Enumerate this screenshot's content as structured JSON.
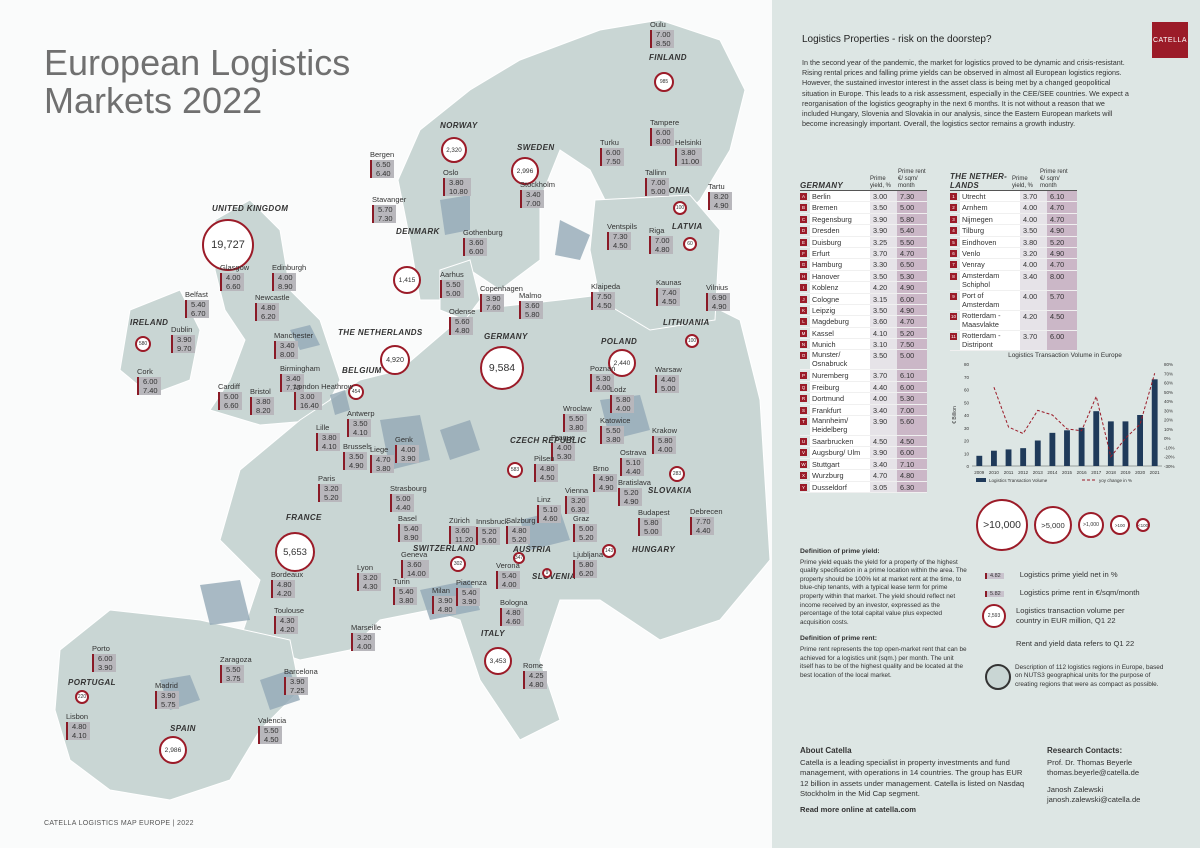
{
  "title": {
    "line1": "European Logistics",
    "line2": "Markets 2022"
  },
  "footer": "CATELLA LOGISTICS MAP EUROPE | 2022",
  "logo": "CATELLA",
  "colors": {
    "accent": "#9b1b28",
    "land": "#c9d6d4",
    "panel": "#dde6e4"
  },
  "panel": {
    "heading": "Logistics Properties - risk on the doorstep?",
    "intro": "In the second year of the pandemic, the market for logistics proved to be dynamic and crisis-resistant. Rising rental prices and falling prime yields can be observed in almost all European logistics regions. However, the sustained investor interest in the asset class is being met by a changed geopolitical situation in Europe. This leads to a risk assessment, especially in the CEE/SEE countries. We expect a reorganisation of the logistics geography in the next 6 months. It is not without a reason that we included Hungary, Slovenia and Slovakia in our analysis, since the Eastern European markets will become increasingly important. Overall, the logistics sector remains a growth industry."
  },
  "countries": [
    {
      "name": "UNITED KINGDOM",
      "volume": "19,727"
    },
    {
      "name": "NORWAY",
      "volume": "2,320"
    },
    {
      "name": "SWEDEN",
      "volume": "2,996"
    },
    {
      "name": "FINLAND",
      "volume": "985"
    },
    {
      "name": "ESTONIA",
      "volume": "100"
    },
    {
      "name": "LATVIA",
      "volume": "60"
    },
    {
      "name": "LITHUANIA",
      "volume": "100"
    },
    {
      "name": "DENMARK",
      "volume": "1,415"
    },
    {
      "name": "IRELAND",
      "volume": "580"
    },
    {
      "name": "THE NETHERLANDS",
      "volume": "4,920"
    },
    {
      "name": "BELGIUM",
      "volume": "454"
    },
    {
      "name": "GERMANY",
      "volume": "9,584"
    },
    {
      "name": "POLAND",
      "volume": "2,440"
    },
    {
      "name": "CZECH REPUBLIC",
      "volume": "583"
    },
    {
      "name": "SLOVAKIA",
      "volume": "283"
    },
    {
      "name": "FRANCE",
      "volume": "5,653"
    },
    {
      "name": "SWITZERLAND",
      "volume": "302"
    },
    {
      "name": "AUSTRIA",
      "volume": "347"
    },
    {
      "name": "SLOVENIA",
      "volume": "9"
    },
    {
      "name": "HUNGARY",
      "volume": "143"
    },
    {
      "name": "ITALY",
      "volume": "3,453"
    },
    {
      "name": "PORTUGAL",
      "volume": "220"
    },
    {
      "name": "SPAIN",
      "volume": "2,986"
    }
  ],
  "cities": [
    {
      "name": "Oulu",
      "yield": "7.00",
      "rent": "8.50"
    },
    {
      "name": "Tampere",
      "yield": "6.00",
      "rent": "8.00"
    },
    {
      "name": "Turku",
      "yield": "6.00",
      "rent": "7.50"
    },
    {
      "name": "Helsinki",
      "yield": "3.80",
      "rent": "11.00"
    },
    {
      "name": "Tallinn",
      "yield": "7.00",
      "rent": "5.00"
    },
    {
      "name": "Tartu",
      "yield": "8.20",
      "rent": "4.90"
    },
    {
      "name": "Bergen",
      "yield": "6.50",
      "rent": "6.40"
    },
    {
      "name": "Oslo",
      "yield": "3.80",
      "rent": "10.80"
    },
    {
      "name": "Stavanger",
      "yield": "5.70",
      "rent": "7.30"
    },
    {
      "name": "Stockholm",
      "yield": "3.40",
      "rent": "7.00"
    },
    {
      "name": "Gothenburg",
      "yield": "3.60",
      "rent": "6.00"
    },
    {
      "name": "Ventspils",
      "yield": "7.30",
      "rent": "4.50"
    },
    {
      "name": "Riga",
      "yield": "7.00",
      "rent": "4.80"
    },
    {
      "name": "Klaipeda",
      "yield": "7.50",
      "rent": "4.50"
    },
    {
      "name": "Kaunas",
      "yield": "7.40",
      "rent": "4.50"
    },
    {
      "name": "Vilnius",
      "yield": "6.90",
      "rent": "4.90"
    },
    {
      "name": "Glasgow",
      "yield": "4.00",
      "rent": "6.60"
    },
    {
      "name": "Edinburgh",
      "yield": "4.00",
      "rent": "8.90"
    },
    {
      "name": "Belfast",
      "yield": "5.40",
      "rent": "6.70"
    },
    {
      "name": "Newcastle",
      "yield": "4.80",
      "rent": "6.20"
    },
    {
      "name": "Dublin",
      "yield": "3.90",
      "rent": "9.70"
    },
    {
      "name": "Manchester",
      "yield": "3.40",
      "rent": "8.00"
    },
    {
      "name": "Cork",
      "yield": "6.00",
      "rent": "7.40"
    },
    {
      "name": "Birmingham",
      "yield": "3.40",
      "rent": "7.70"
    },
    {
      "name": "Cardiff",
      "yield": "5.00",
      "rent": "6.60"
    },
    {
      "name": "Bristol",
      "yield": "3.80",
      "rent": "8.20"
    },
    {
      "name": "London Heathrow",
      "yield": "3.00",
      "rent": "16.40"
    },
    {
      "name": "Aarhus",
      "yield": "5.50",
      "rent": "5.00"
    },
    {
      "name": "Copenhagen",
      "yield": "3.90",
      "rent": "7.60"
    },
    {
      "name": "Malmo",
      "yield": "3.60",
      "rent": "5.80"
    },
    {
      "name": "Odense",
      "yield": "5.60",
      "rent": "4.80"
    },
    {
      "name": "Antwerp",
      "yield": "3.50",
      "rent": "4.10"
    },
    {
      "name": "Lille",
      "yield": "3.80",
      "rent": "4.10"
    },
    {
      "name": "Brussels",
      "yield": "3.50",
      "rent": "4.90"
    },
    {
      "name": "Liege",
      "yield": "4.70",
      "rent": "3.80"
    },
    {
      "name": "Genk",
      "yield": "4.00",
      "rent": "3.90"
    },
    {
      "name": "Paris",
      "yield": "3.20",
      "rent": "5.20"
    },
    {
      "name": "Poznań",
      "yield": "5.30",
      "rent": "4.00"
    },
    {
      "name": "Warsaw",
      "yield": "4.40",
      "rent": "5.00"
    },
    {
      "name": "Lodz",
      "yield": "5.80",
      "rent": "4.00"
    },
    {
      "name": "Wroclaw",
      "yield": "5.50",
      "rent": "3.80"
    },
    {
      "name": "Katowice",
      "yield": "5.50",
      "rent": "3.80"
    },
    {
      "name": "Krakow",
      "yield": "5.80",
      "rent": "4.00"
    },
    {
      "name": "Prague",
      "yield": "4.00",
      "rent": "5.30"
    },
    {
      "name": "Pilsen",
      "yield": "4.80",
      "rent": "4.50"
    },
    {
      "name": "Ostrava",
      "yield": "5.10",
      "rent": "4.40"
    },
    {
      "name": "Brno",
      "yield": "4.90",
      "rent": "4.90"
    },
    {
      "name": "Bratislava",
      "yield": "5.20",
      "rent": "4.90"
    },
    {
      "name": "Strasbourg",
      "yield": "5.00",
      "rent": "4.40"
    },
    {
      "name": "Zürich",
      "yield": "3.60",
      "rent": "11.20"
    },
    {
      "name": "Basel",
      "yield": "5.40",
      "rent": "8.90"
    },
    {
      "name": "Innsbruck",
      "yield": "5.20",
      "rent": "5.60"
    },
    {
      "name": "Salzburg",
      "yield": "4.80",
      "rent": "5.20"
    },
    {
      "name": "Linz",
      "yield": "5.10",
      "rent": "4.60"
    },
    {
      "name": "Vienna",
      "yield": "3.20",
      "rent": "6.30"
    },
    {
      "name": "Graz",
      "yield": "5.00",
      "rent": "5.20"
    },
    {
      "name": "Budapest",
      "yield": "5.80",
      "rent": "5.00"
    },
    {
      "name": "Debrecen",
      "yield": "7.70",
      "rent": "4.40"
    },
    {
      "name": "Geneva",
      "yield": "3.60",
      "rent": "14.00"
    },
    {
      "name": "Lyon",
      "yield": "3.20",
      "rent": "4.30"
    },
    {
      "name": "Bordeaux",
      "yield": "4.80",
      "rent": "4.20"
    },
    {
      "name": "Turin",
      "yield": "5.40",
      "rent": "3.80"
    },
    {
      "name": "Milan",
      "yield": "3.90",
      "rent": "4.80"
    },
    {
      "name": "Piacenza",
      "yield": "5.40",
      "rent": "3.90"
    },
    {
      "name": "Verona",
      "yield": "5.40",
      "rent": "4.00"
    },
    {
      "name": "Ljubljana",
      "yield": "5.80",
      "rent": "6.20"
    },
    {
      "name": "Toulouse",
      "yield": "4.30",
      "rent": "4.20"
    },
    {
      "name": "Bologna",
      "yield": "4.80",
      "rent": "4.60"
    },
    {
      "name": "Marseille",
      "yield": "3.20",
      "rent": "4.00"
    },
    {
      "name": "Porto",
      "yield": "6.00",
      "rent": "3.90"
    },
    {
      "name": "Zaragoza",
      "yield": "5.50",
      "rent": "3.75"
    },
    {
      "name": "Rome",
      "yield": "4.25",
      "rent": "4.80"
    },
    {
      "name": "Madrid",
      "yield": "3.90",
      "rent": "5.75"
    },
    {
      "name": "Barcelona",
      "yield": "3.90",
      "rent": "7.25"
    },
    {
      "name": "Lisbon",
      "yield": "4.80",
      "rent": "4.10"
    },
    {
      "name": "Valencia",
      "yield": "5.50",
      "rent": "4.50"
    }
  ],
  "tables": {
    "col_yield": "Prime yield, %",
    "col_rent": "Prime rent €/ sqm/ month",
    "germany": {
      "country": "GERMANY",
      "rows": [
        {
          "code": "A",
          "name": "Berlin",
          "yield": "3.00",
          "rent": "7.30"
        },
        {
          "code": "B",
          "name": "Bremen",
          "yield": "3.50",
          "rent": "5.00"
        },
        {
          "code": "C",
          "name": "Regensburg",
          "yield": "3.90",
          "rent": "5.80"
        },
        {
          "code": "D",
          "name": "Dresden",
          "yield": "3.90",
          "rent": "5.40"
        },
        {
          "code": "E",
          "name": "Duisburg",
          "yield": "3.25",
          "rent": "5.50"
        },
        {
          "code": "F",
          "name": "Erfurt",
          "yield": "3.70",
          "rent": "4.70"
        },
        {
          "code": "G",
          "name": "Hamburg",
          "yield": "3.30",
          "rent": "6.50"
        },
        {
          "code": "H",
          "name": "Hanover",
          "yield": "3.50",
          "rent": "5.30"
        },
        {
          "code": "I",
          "name": "Koblenz",
          "yield": "4.20",
          "rent": "4.90"
        },
        {
          "code": "J",
          "name": "Cologne",
          "yield": "3.15",
          "rent": "6.00"
        },
        {
          "code": "K",
          "name": "Leipzig",
          "yield": "3.50",
          "rent": "4.90"
        },
        {
          "code": "L",
          "name": "Magdeburg",
          "yield": "3.60",
          "rent": "4.70"
        },
        {
          "code": "M",
          "name": "Kassel",
          "yield": "4.10",
          "rent": "5.20"
        },
        {
          "code": "N",
          "name": "Munich",
          "yield": "3.10",
          "rent": "7.50"
        },
        {
          "code": "O",
          "name": "Munster/ Osnabruck",
          "yield": "3.50",
          "rent": "5.00"
        },
        {
          "code": "P",
          "name": "Nuremberg",
          "yield": "3.70",
          "rent": "6.10"
        },
        {
          "code": "Q",
          "name": "Freiburg",
          "yield": "4.40",
          "rent": "6.00"
        },
        {
          "code": "R",
          "name": "Dortmund",
          "yield": "4.00",
          "rent": "5.30"
        },
        {
          "code": "S",
          "name": "Frankfurt",
          "yield": "3.40",
          "rent": "7.00"
        },
        {
          "code": "T",
          "name": "Mannheim/ Heidelberg",
          "yield": "3.90",
          "rent": "5.60"
        },
        {
          "code": "U",
          "name": "Saarbrucken",
          "yield": "4.50",
          "rent": "4.50"
        },
        {
          "code": "V",
          "name": "Augsburg/ Ulm",
          "yield": "3.90",
          "rent": "6.00"
        },
        {
          "code": "W",
          "name": "Stuttgart",
          "yield": "3.40",
          "rent": "7.10"
        },
        {
          "code": "X",
          "name": "Wurzburg",
          "yield": "4.70",
          "rent": "4.80"
        },
        {
          "code": "Y",
          "name": "Dusseldorf",
          "yield": "3.05",
          "rent": "6.30"
        }
      ]
    },
    "netherlands": {
      "country": "THE NETHER- LANDS",
      "rows": [
        {
          "code": "1",
          "name": "Utrecht",
          "yield": "3.70",
          "rent": "6.10"
        },
        {
          "code": "2",
          "name": "Arnhem",
          "yield": "4.00",
          "rent": "4.70"
        },
        {
          "code": "3",
          "name": "Nijmegen",
          "yield": "4.00",
          "rent": "4.70"
        },
        {
          "code": "4",
          "name": "Tilburg",
          "yield": "3.50",
          "rent": "4.90"
        },
        {
          "code": "5",
          "name": "Eindhoven",
          "yield": "3.80",
          "rent": "5.20"
        },
        {
          "code": "6",
          "name": "Venlo",
          "yield": "3.20",
          "rent": "4.90"
        },
        {
          "code": "7",
          "name": "Venray",
          "yield": "4.00",
          "rent": "4.70"
        },
        {
          "code": "8",
          "name": "Amsterdam Schiphol",
          "yield": "3.40",
          "rent": "8.00"
        },
        {
          "code": "9",
          "name": "Port of Amsterdam",
          "yield": "4.00",
          "rent": "5.70"
        },
        {
          "code": "10",
          "name": "Rotterdam - Maasvlakte",
          "yield": "4.20",
          "rent": "4.50"
        },
        {
          "code": "11",
          "name": "Rotterdam - Distripont",
          "yield": "3.70",
          "rent": "6.00"
        }
      ]
    }
  },
  "chart_data": {
    "type": "bar",
    "title": "Logistics Transaction Volume in Europe",
    "ylabel": "€ Billion",
    "categories": [
      "2009",
      "2010",
      "2011",
      "2012",
      "2013",
      "2014",
      "2015",
      "2016",
      "2017",
      "2018",
      "2019",
      "2020",
      "2021"
    ],
    "ylim": [
      0,
      80
    ],
    "y_ticks": [
      "0",
      "10",
      "20",
      "30",
      "40",
      "50",
      "60",
      "70",
      "80"
    ],
    "y2lim": [
      -30,
      80
    ],
    "y2_ticks": [
      "-30%",
      "-20%",
      "-10%",
      "0%",
      "10%",
      "20%",
      "30%",
      "40%",
      "50%",
      "60%",
      "70%",
      "80%"
    ],
    "series": [
      {
        "name": "Logistics Transaction Volume",
        "type": "bar",
        "color": "#1f3a5a",
        "values": [
          8,
          12,
          13,
          14,
          20,
          26,
          28,
          30,
          43,
          35,
          35,
          40,
          68
        ]
      },
      {
        "name": "yoy change in %",
        "type": "line",
        "color": "#9b1b28",
        "values": [
          null,
          55,
          12,
          5,
          30,
          25,
          10,
          8,
          45,
          -20,
          0,
          15,
          70
        ]
      }
    ]
  },
  "size_legend": [
    ">10,000",
    ">5,000",
    ">1,000",
    ">100",
    "<100"
  ],
  "legend": {
    "sample_yield": "4.82",
    "sample_rent": "5.82",
    "sample_volume": "2,593",
    "yield": "Logistics prime yield net in %",
    "rent": "Logistics prime rent in €/sqm/month",
    "volume": "Logistics transaction volume per country in EUR million, Q1 22",
    "ref_note": "Rent and yield data refers to Q1 22",
    "regions": "Description of 112 logistics regions in Europe, based on NUTS3 geographical units for the purpose of creating regions that were as compact as possible."
  },
  "definitions": {
    "yield_title": "Definition of prime yield:",
    "yield_text": "Prime yield equals the yield for a property of the highest quality specification in a prime location within the area. The property should be 100% let at market rent at the time, to blue-chip tenants, with a typical lease term for prime property within that market. The yield should reflect net income received by an investor, expressed as the percentage of the total capital value plus expected acquisition costs.",
    "rent_title": "Definition of prime rent:",
    "rent_text": "Prime rent represents the top open-market rent that can be achieved for a logistics unit (sqm.) per month. The unit itself has to be of the highest quality and be located at the best location of the local market."
  },
  "about": {
    "title": "About Catella",
    "text": "Catella is a leading specialist in property investments and fund management, with operations in 14 countries. The group has EUR 12 billion in assets under management. Catella is listed on Nasdaq Stockholm in the Mid Cap segment.",
    "link": "Read more online at catella.com"
  },
  "contacts": {
    "title": "Research Contacts:",
    "p1_name": "Prof. Dr. Thomas Beyerle",
    "p1_mail": "thomas.beyerle@catella.de",
    "p2_name": "Janosh Zalewski",
    "p2_mail": "janosh.zalewski@catella.de"
  }
}
